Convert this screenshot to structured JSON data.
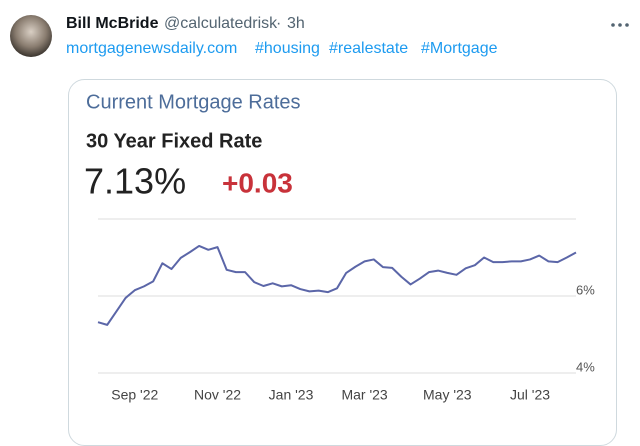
{
  "tweet": {
    "author": {
      "name": "Bill McBride",
      "handle": "@calculatedrisk",
      "separator": "·",
      "time": "3h"
    },
    "links": [
      "mortgagenewsdaily.com",
      "#housing",
      "#realestate",
      "#Mortgage"
    ]
  },
  "chart_data": {
    "type": "line",
    "title": "Current Mortgage Rates",
    "subtitle": "30 Year Fixed Rate",
    "current_rate": "7.13%",
    "change": "+0.03",
    "categories": [
      null,
      null,
      null,
      null,
      "Sep '22",
      null,
      null,
      null,
      null,
      null,
      null,
      null,
      null,
      "Nov '22",
      null,
      null,
      null,
      null,
      null,
      null,
      null,
      "Jan '23",
      null,
      null,
      null,
      null,
      null,
      null,
      null,
      "Mar '23",
      null,
      null,
      null,
      null,
      null,
      null,
      null,
      null,
      "May '23",
      null,
      null,
      null,
      null,
      null,
      null,
      null,
      null,
      "Jul '23",
      null,
      null,
      null,
      null,
      null
    ],
    "series": [
      {
        "name": "30 Year Fixed Rate",
        "color": "#5b66a8",
        "values": [
          5.32,
          5.25,
          5.6,
          5.95,
          6.15,
          6.25,
          6.38,
          6.85,
          6.7,
          6.99,
          7.14,
          7.3,
          7.2,
          7.27,
          6.68,
          6.62,
          6.62,
          6.36,
          6.26,
          6.33,
          6.25,
          6.28,
          6.18,
          6.12,
          6.14,
          6.1,
          6.2,
          6.6,
          6.76,
          6.9,
          6.95,
          6.75,
          6.73,
          6.5,
          6.3,
          6.45,
          6.62,
          6.66,
          6.6,
          6.55,
          6.72,
          6.8,
          7.0,
          6.88,
          6.88,
          6.9,
          6.9,
          6.95,
          7.05,
          6.9,
          6.88,
          7.0,
          7.13
        ]
      }
    ],
    "ylim": [
      4,
      8
    ],
    "yticks": [
      {
        "value": 4,
        "label": "4%"
      },
      {
        "value": 6,
        "label": "6%"
      }
    ],
    "grid": true
  }
}
